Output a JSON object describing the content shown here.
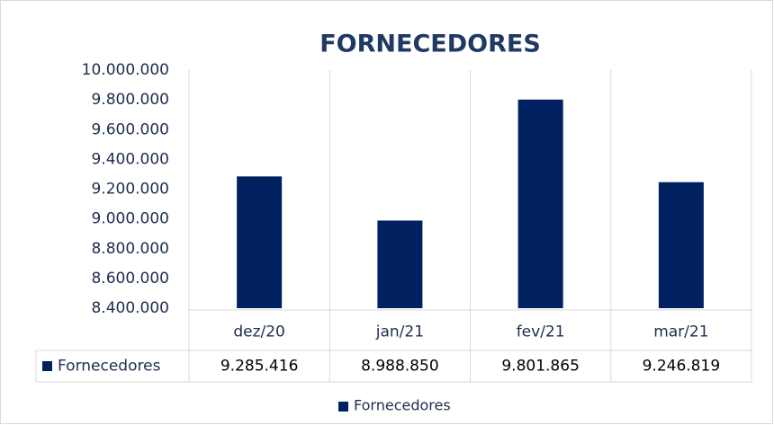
{
  "chart_data": {
    "type": "bar",
    "title": "FORNECEDORES",
    "categories": [
      "dez/20",
      "jan/21",
      "fev/21",
      "mar/21"
    ],
    "series": [
      {
        "name": "Fornecedores",
        "color": "#002060",
        "values": [
          9285416,
          8988850,
          9801865,
          9246819
        ],
        "value_labels": [
          "9.285.416",
          "8.988.850",
          "9.801.865",
          "9.246.819"
        ]
      }
    ],
    "ylim": [
      8400000,
      10000000
    ],
    "yticks": [
      {
        "value": 8400000,
        "label": "8.400.000"
      },
      {
        "value": 8600000,
        "label": "8.600.000"
      },
      {
        "value": 8800000,
        "label": "8.800.000"
      },
      {
        "value": 9000000,
        "label": "9.000.000"
      },
      {
        "value": 9200000,
        "label": "9.200.000"
      },
      {
        "value": 9400000,
        "label": "9.400.000"
      },
      {
        "value": 9600000,
        "label": "9.600.000"
      },
      {
        "value": 9800000,
        "label": "9.800.000"
      },
      {
        "value": 10000000,
        "label": "10.000.000"
      }
    ],
    "grid": false,
    "legend": "bottom"
  }
}
